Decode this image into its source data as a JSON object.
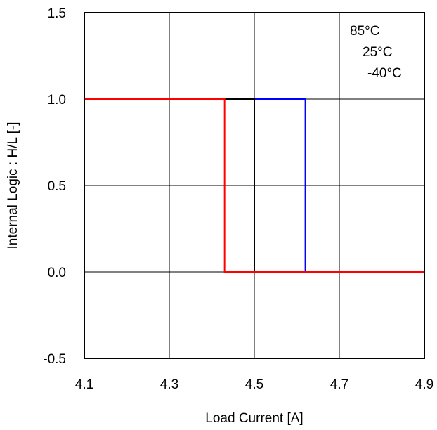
{
  "chart_data": {
    "type": "line",
    "title": "",
    "xlabel": "Load Current [A]",
    "ylabel": "Internal Logic : H/L [-]",
    "xlim": [
      4.1,
      4.9
    ],
    "ylim": [
      -0.5,
      1.5
    ],
    "x_ticks": [
      "4.1",
      "4.3",
      "4.5",
      "4.7",
      "4.9"
    ],
    "x_tick_values": [
      4.1,
      4.3,
      4.5,
      4.7,
      4.9
    ],
    "y_ticks": [
      "1.5",
      "1.0",
      "0.5",
      "0.0",
      "-0.5"
    ],
    "y_tick_values": [
      1.5,
      1.0,
      0.5,
      0.0,
      -0.5
    ],
    "grid": true,
    "legend_position": "top-right",
    "legend": [
      "85°C",
      "25°C",
      "-40°C"
    ],
    "series": [
      {
        "name": "-40°C",
        "color": "#0000ff",
        "x": [
          4.1,
          4.62,
          4.62,
          4.9
        ],
        "y": [
          1.0,
          1.0,
          0.0,
          0.0
        ]
      },
      {
        "name": "25°C",
        "color": "#000000",
        "x": [
          4.1,
          4.5,
          4.5,
          4.9
        ],
        "y": [
          1.0,
          1.0,
          0.0,
          0.0
        ]
      },
      {
        "name": "85°C",
        "color": "#ff0000",
        "x": [
          4.1,
          4.43,
          4.43,
          4.9
        ],
        "y": [
          1.0,
          1.0,
          0.0,
          0.0
        ]
      }
    ]
  }
}
